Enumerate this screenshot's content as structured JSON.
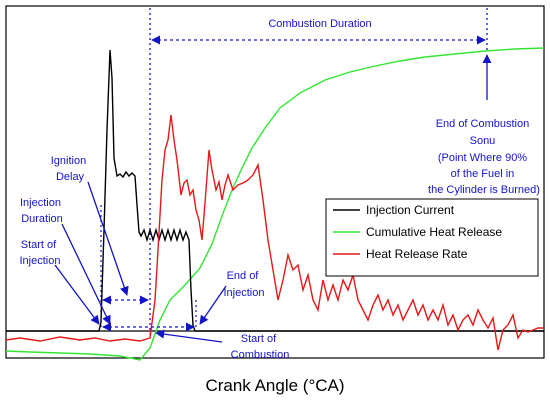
{
  "chart_data": {
    "type": "line",
    "xlabel": "Crank Angle (°CA)",
    "ylabel": "",
    "legend": "right",
    "series": [
      {
        "name": "Injection Current",
        "color": "#000000"
      },
      {
        "name": "Cumulative Heat Release",
        "color": "#33e633"
      },
      {
        "name": "Heat Release Rate",
        "color": "#e61919"
      }
    ]
  },
  "annotations": {
    "combustion_duration": "Combustion Duration",
    "end_of_combustion": [
      "End of Combustion",
      "Sonu",
      "(Point Where 90%",
      "of the Fuel in",
      "the Cylinder is Burned)"
    ],
    "ignition_delay": [
      "Ignition",
      "Delay"
    ],
    "injection_duration": [
      "Injection",
      "Duration"
    ],
    "start_of_injection": [
      "Start of",
      "Injection"
    ],
    "end_of_injection": [
      "End of",
      "Injection"
    ],
    "start_of_combustion": [
      "Start of",
      "Combustion"
    ]
  },
  "colors": {
    "annotation": "#1414c8",
    "frame": "#000000",
    "background": "#ffffff"
  }
}
